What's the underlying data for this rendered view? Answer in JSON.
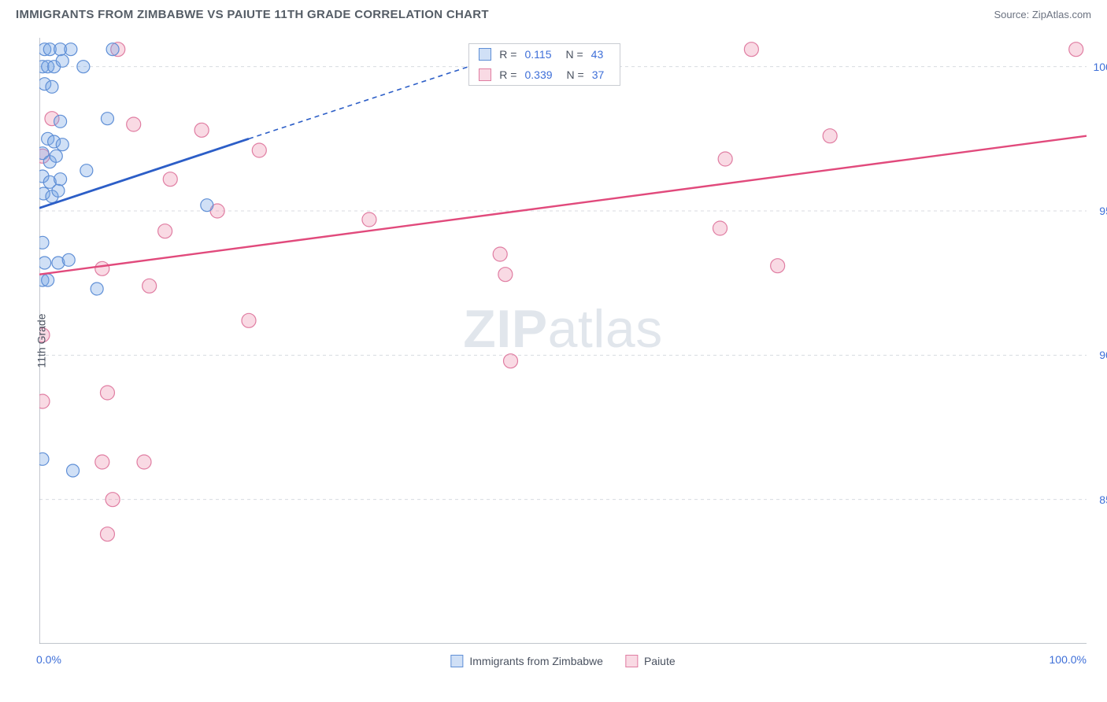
{
  "title": "IMMIGRANTS FROM ZIMBABWE VS PAIUTE 11TH GRADE CORRELATION CHART",
  "source": "Source: ZipAtlas.com",
  "watermark": {
    "bold": "ZIP",
    "light": "atlas"
  },
  "chart": {
    "type": "scatter",
    "background_color": "#ffffff",
    "border_color": "#9ba2ad",
    "grid_color": "#d8dbe0",
    "tick_color": "#9ba2ad",
    "axis_label_color": "#4a5260",
    "tick_label_color": "#3e6fd8",
    "y_label": "11th Grade",
    "x_min": 0,
    "x_max": 100,
    "y_min": 80,
    "y_max": 101,
    "x_tick_labels": {
      "min": "0.0%",
      "max": "100.0%"
    },
    "x_minor_ticks": [
      0,
      7,
      14,
      21,
      28,
      35,
      42,
      49,
      56,
      63,
      70,
      77,
      84,
      91,
      98
    ],
    "y_ticks": [
      {
        "v": 85,
        "label": "85.0%"
      },
      {
        "v": 90,
        "label": "90.0%"
      },
      {
        "v": 95,
        "label": "95.0%"
      },
      {
        "v": 100,
        "label": "100.0%"
      }
    ],
    "series": [
      {
        "name": "Immigrants from Zimbabwe",
        "fill": "rgba(120,165,230,0.35)",
        "stroke": "#5f8fd6",
        "trend_stroke": "#2c5ec7",
        "trend_dash_stroke": "#2c5ec7",
        "point_radius": 8,
        "R": "0.115",
        "N": "43",
        "trend": {
          "x1": 0,
          "y1": 95.1,
          "x2": 20,
          "y2": 97.5
        },
        "trend_dash": {
          "x1": 20,
          "y1": 97.5,
          "x2": 41,
          "y2": 100
        },
        "points": [
          [
            0.5,
            100.6
          ],
          [
            1.0,
            100.6
          ],
          [
            2.0,
            100.6
          ],
          [
            7.0,
            100.6
          ],
          [
            3.0,
            100.6
          ],
          [
            0.3,
            100.0
          ],
          [
            0.8,
            100.0
          ],
          [
            1.4,
            100.0
          ],
          [
            2.2,
            100.2
          ],
          [
            4.2,
            100.0
          ],
          [
            0.5,
            99.4
          ],
          [
            1.2,
            99.3
          ],
          [
            2.0,
            98.1
          ],
          [
            6.5,
            98.2
          ],
          [
            0.8,
            97.5
          ],
          [
            1.4,
            97.4
          ],
          [
            2.2,
            97.3
          ],
          [
            0.3,
            97.0
          ],
          [
            1.0,
            96.7
          ],
          [
            1.6,
            96.9
          ],
          [
            0.3,
            96.2
          ],
          [
            1.0,
            96.0
          ],
          [
            2.0,
            96.1
          ],
          [
            4.5,
            96.4
          ],
          [
            0.4,
            95.6
          ],
          [
            1.2,
            95.5
          ],
          [
            1.8,
            95.7
          ],
          [
            16.0,
            95.2
          ],
          [
            0.3,
            93.9
          ],
          [
            0.5,
            93.2
          ],
          [
            1.8,
            93.2
          ],
          [
            2.8,
            93.3
          ],
          [
            0.3,
            92.6
          ],
          [
            0.8,
            92.6
          ],
          [
            5.5,
            92.3
          ],
          [
            0.3,
            86.4
          ],
          [
            3.2,
            86.0
          ]
        ]
      },
      {
        "name": "Paiute",
        "fill": "rgba(235,140,170,0.32)",
        "stroke": "#e07da2",
        "trend_stroke": "#e14a7c",
        "point_radius": 9,
        "R": "0.339",
        "N": "37",
        "trend": {
          "x1": 0,
          "y1": 92.8,
          "x2": 100,
          "y2": 97.6
        },
        "points": [
          [
            7.5,
            100.6
          ],
          [
            68.0,
            100.6
          ],
          [
            99.0,
            100.6
          ],
          [
            1.2,
            98.2
          ],
          [
            9.0,
            98.0
          ],
          [
            15.5,
            97.8
          ],
          [
            75.5,
            97.6
          ],
          [
            21.0,
            97.1
          ],
          [
            65.5,
            96.8
          ],
          [
            0.3,
            96.9
          ],
          [
            12.5,
            96.1
          ],
          [
            17.0,
            95.0
          ],
          [
            31.5,
            94.7
          ],
          [
            65.0,
            94.4
          ],
          [
            12.0,
            94.3
          ],
          [
            44.0,
            93.5
          ],
          [
            70.5,
            93.1
          ],
          [
            6.0,
            93.0
          ],
          [
            44.5,
            92.8
          ],
          [
            10.5,
            92.4
          ],
          [
            20.0,
            91.2
          ],
          [
            0.3,
            90.7
          ],
          [
            45.0,
            89.8
          ],
          [
            6.5,
            88.7
          ],
          [
            0.3,
            88.4
          ],
          [
            6.0,
            86.3
          ],
          [
            10.0,
            86.3
          ],
          [
            7.0,
            85.0
          ],
          [
            6.5,
            83.8
          ]
        ]
      }
    ],
    "stats_box": {
      "x": 41,
      "y_top": 100.8
    },
    "bottom_legend": [
      {
        "label": "Immigrants from Zimbabwe",
        "fill": "rgba(120,165,230,0.35)",
        "stroke": "#5f8fd6"
      },
      {
        "label": "Paiute",
        "fill": "rgba(235,140,170,0.32)",
        "stroke": "#e07da2"
      }
    ]
  }
}
